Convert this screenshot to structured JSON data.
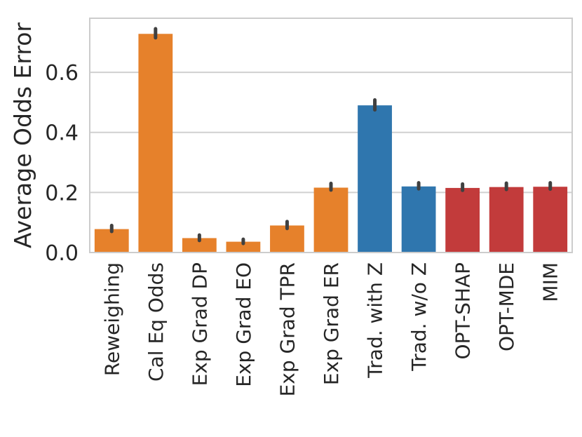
{
  "chart_data": {
    "type": "bar",
    "ylabel": "Average Odds Error",
    "xlabel": "",
    "title": "",
    "ylim": [
      0,
      0.78
    ],
    "yticks": [
      0.0,
      0.2,
      0.4,
      0.6
    ],
    "ytick_labels": [
      "0.0",
      "0.2",
      "0.4",
      "0.6"
    ],
    "grid": true,
    "categories": [
      "Reweighing",
      "Cal Eq Odds",
      "Exp Grad DP",
      "Exp Grad EO",
      "Exp Grad TPR",
      "Exp Grad ER",
      "Trad. with Z",
      "Trad. w/o Z",
      "OPT-SHAP",
      "OPT-MDE",
      "MIM"
    ],
    "values": [
      0.078,
      0.728,
      0.048,
      0.036,
      0.09,
      0.216,
      0.49,
      0.22,
      0.215,
      0.218,
      0.219
    ],
    "error_low": [
      0.07,
      0.715,
      0.04,
      0.03,
      0.08,
      0.208,
      0.475,
      0.212,
      0.207,
      0.21,
      0.211
    ],
    "error_high": [
      0.09,
      0.745,
      0.058,
      0.044,
      0.103,
      0.23,
      0.508,
      0.232,
      0.228,
      0.231,
      0.232
    ],
    "colors": [
      "#e6812b",
      "#e6812b",
      "#e6812b",
      "#e6812b",
      "#e6812b",
      "#e6812b",
      "#2f76ae",
      "#2f76ae",
      "#c23b3b",
      "#c23b3b",
      "#c23b3b"
    ],
    "grid_color": "#d0d0d0",
    "frame_color": "#cccccc",
    "errorbar_color": "#404040"
  }
}
